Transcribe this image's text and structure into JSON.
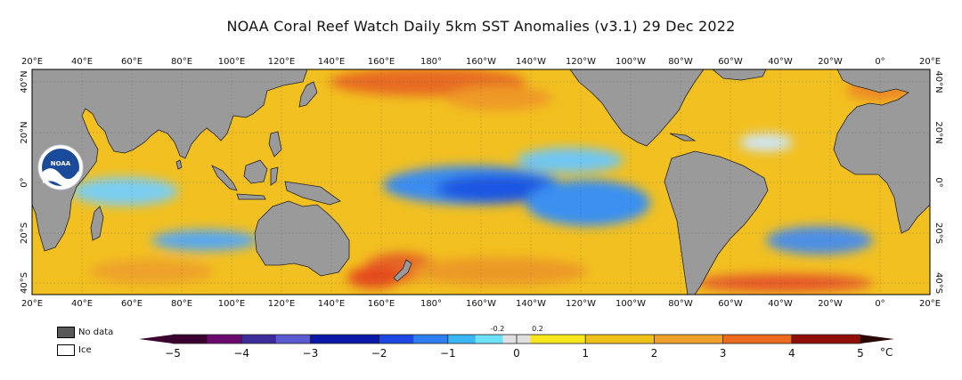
{
  "title": "NOAA Coral Reef Watch Daily 5km SST Anomalies  (v3.1)   29 Dec 2022",
  "logo_text": "NOAA",
  "lon_labels": [
    "20°E",
    "40°E",
    "60°E",
    "80°E",
    "100°E",
    "120°E",
    "140°E",
    "160°E",
    "180°",
    "160°W",
    "140°W",
    "120°W",
    "100°W",
    "80°W",
    "60°W",
    "40°W",
    "20°W",
    "0°",
    "20°E"
  ],
  "lat_labels": [
    "40°N",
    "20°N",
    "0°",
    "20°S",
    "40°S"
  ],
  "legend": {
    "no_data_label": "No data",
    "ice_label": "Ice",
    "no_data_color": "#595959",
    "ice_color": "#ffffff"
  },
  "colorbar": {
    "ticks": [
      "−5",
      "−4",
      "−3",
      "−2",
      "−1",
      "0",
      "1",
      "2",
      "3",
      "4",
      "5"
    ],
    "small_ticks": [
      "-0.2",
      "0.2"
    ],
    "unit": "°C",
    "colors": [
      "#3b0030",
      "#6a0a6e",
      "#3c2c9a",
      "#5a5ad0",
      "#0a18a8",
      "#1e46e0",
      "#2e7ef2",
      "#3ab6f5",
      "#6ee0f8",
      "#e0e0e0",
      "#f7e61c",
      "#efc018",
      "#eea02a",
      "#ec6a20",
      "#d82a18",
      "#901008"
    ]
  },
  "colors": {
    "land": "#9a9a9a",
    "ocean_warm": "#f3bb1f",
    "ocean_hot": "#e5622a",
    "ocean_cool": "#3d8ff1",
    "ocean_cold": "#1f52e4"
  }
}
